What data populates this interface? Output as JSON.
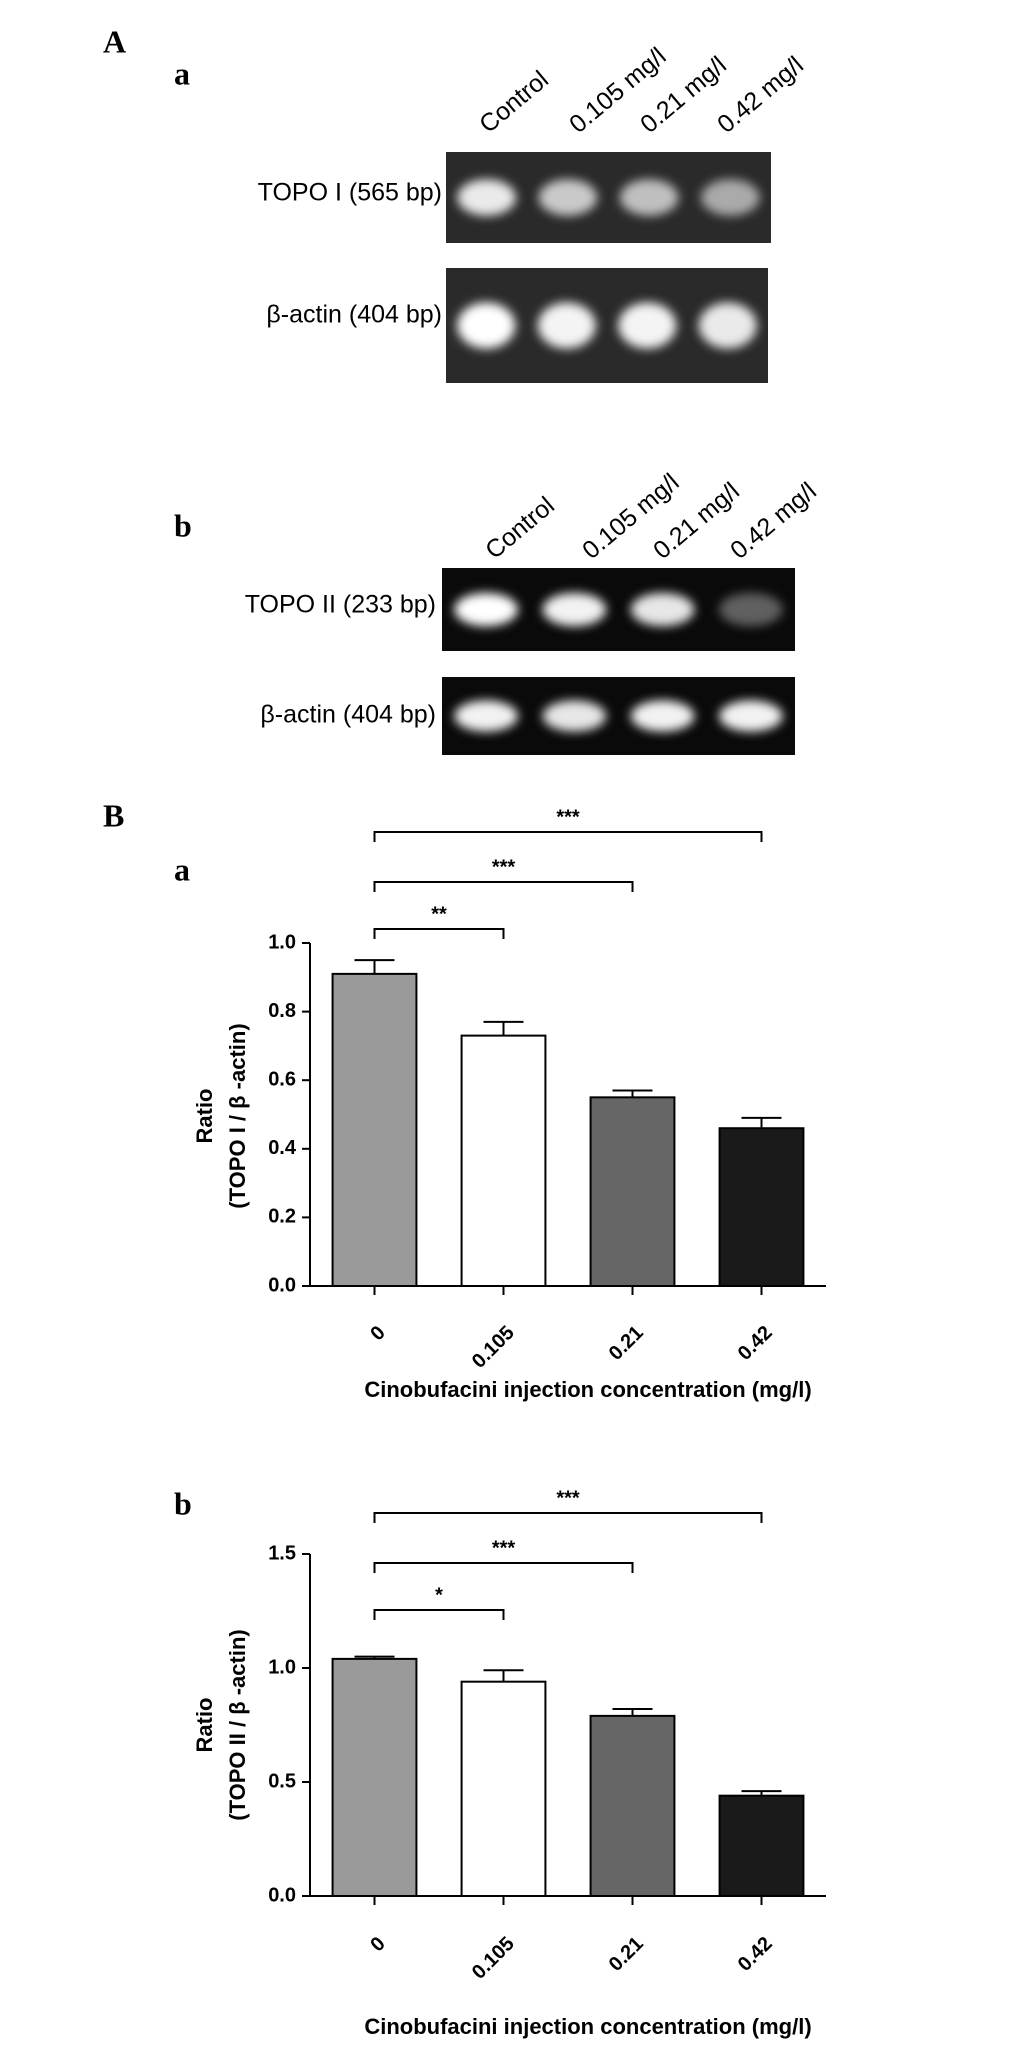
{
  "panels": [
    "A",
    "B"
  ],
  "gels": [
    {
      "panel": "a",
      "lanes": [
        "Control",
        "0.105 mg/l",
        "0.21 mg/l",
        "0.42 mg/l"
      ],
      "rows": [
        "TOPO I (565 bp)",
        "β-actin (404 bp)"
      ]
    },
    {
      "panel": "b",
      "lanes": [
        "Control",
        "0.105 mg/l",
        "0.21 mg/l",
        "0.42 mg/l"
      ],
      "rows": [
        "TOPO II (233 bp)",
        "β-actin (404 bp)"
      ]
    }
  ],
  "chart_data": [
    {
      "type": "bar",
      "panel": "a",
      "categories": [
        "0",
        "0.105",
        "0.21",
        "0.42"
      ],
      "values": [
        0.91,
        0.73,
        0.55,
        0.46
      ],
      "errors": [
        0.04,
        0.04,
        0.02,
        0.03
      ],
      "colors": [
        "#9a9a9a",
        "#ffffff",
        "#666666",
        "#1a1a1a"
      ],
      "ylim": [
        0,
        1
      ],
      "yticks": [
        {
          "value": 0,
          "label": "0.0"
        },
        0.2,
        0.4,
        0.6,
        0.8,
        {
          "value": 1,
          "label": "1.0"
        }
      ],
      "ylabel": [
        "Ratio",
        "(TOPO I / β -actin)"
      ],
      "xlabel": "Cinobufacini injection concentration (mg/l)",
      "significance": [
        {
          "from": 0,
          "to": 1,
          "label": "**"
        },
        {
          "from": 0,
          "to": 2,
          "label": "***"
        },
        {
          "from": 0,
          "to": 3,
          "label": "***"
        }
      ]
    },
    {
      "type": "bar",
      "panel": "b",
      "categories": [
        "0",
        "0.105",
        "0.21",
        "0.42"
      ],
      "values": [
        1.04,
        0.94,
        0.79,
        0.44
      ],
      "errors": [
        0.01,
        0.05,
        0.03,
        0.02
      ],
      "colors": [
        "#9a9a9a",
        "#ffffff",
        "#666666",
        "#1a1a1a"
      ],
      "ylim": [
        0,
        1.5
      ],
      "yticks": [
        {
          "value": 0,
          "label": "0.0"
        },
        0.5,
        {
          "value": 1,
          "label": "1.0"
        },
        1.5
      ],
      "ylabel": [
        "Ratio",
        "(TOPO II / β -actin)"
      ],
      "xlabel": "Cinobufacini injection concentration (mg/l)",
      "significance": [
        {
          "from": 0,
          "to": 1,
          "label": "*"
        },
        {
          "from": 0,
          "to": 2,
          "label": "***"
        },
        {
          "from": 0,
          "to": 3,
          "label": "***"
        }
      ]
    }
  ]
}
